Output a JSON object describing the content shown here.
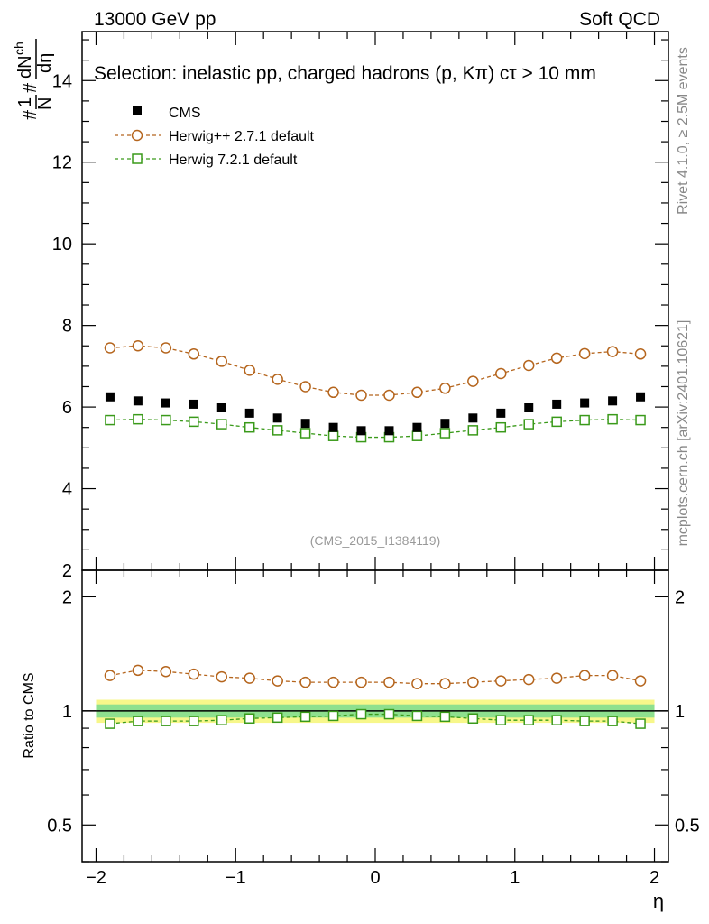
{
  "header": {
    "left": "13000 GeV pp",
    "right": "Soft QCD"
  },
  "side_labels": {
    "rivet": "Rivet 4.1.0, ≥ 2.5M events",
    "mcplots": "mcplots.cern.ch [arXiv:2401.10621]"
  },
  "colors": {
    "cms": "#000000",
    "herwig_pp": "#b5651d",
    "herwig7": "#3a9a1a",
    "band_outer": "#f7f78a",
    "band_inner": "#8ee08e"
  },
  "chart_data": {
    "type": "scatter",
    "title": "Selection: inelastic pp, charged hadrons (p, Kπ) cτ > 10 mm",
    "watermark": "(CMS_2015_I1384119)",
    "xlabel": "η",
    "ylabel": "#1/N# dN_ch/dη",
    "ylabel_parts": {
      "prefix": "#",
      "frac_num": "1",
      "frac_den": "N",
      "mid": "#",
      "dn": "dN",
      "ch": "ch",
      "deta": "dη"
    },
    "xlim": [
      -2.1,
      2.1
    ],
    "ylim": [
      2,
      15.2
    ],
    "x_ticks": [
      -2,
      -1,
      0,
      1,
      2
    ],
    "x_tick_labels": [
      "−2",
      "−1",
      "0",
      "1",
      "2"
    ],
    "y_ticks": [
      2,
      4,
      6,
      8,
      10,
      12,
      14
    ],
    "y_tick_labels": [
      "2",
      "4",
      "6",
      "8",
      "10",
      "12",
      "14"
    ],
    "x": [
      -1.9,
      -1.7,
      -1.5,
      -1.3,
      -1.1,
      -0.9,
      -0.7,
      -0.5,
      -0.3,
      -0.1,
      0.1,
      0.3,
      0.5,
      0.7,
      0.9,
      1.1,
      1.3,
      1.5,
      1.7,
      1.9
    ],
    "series": [
      {
        "name": "CMS",
        "marker": "filled-square",
        "values": [
          6.25,
          6.15,
          6.1,
          6.07,
          5.98,
          5.85,
          5.73,
          5.6,
          5.5,
          5.42,
          5.42,
          5.5,
          5.6,
          5.73,
          5.85,
          5.98,
          6.07,
          6.1,
          6.15,
          6.25
        ]
      },
      {
        "name": "Herwig++ 2.7.1 default",
        "marker": "open-circle",
        "values": [
          7.45,
          7.5,
          7.45,
          7.3,
          7.12,
          6.9,
          6.68,
          6.5,
          6.36,
          6.29,
          6.29,
          6.36,
          6.46,
          6.63,
          6.82,
          7.02,
          7.2,
          7.31,
          7.36,
          7.3
        ]
      },
      {
        "name": "Herwig 7.2.1 default",
        "marker": "open-square",
        "values": [
          5.68,
          5.7,
          5.68,
          5.64,
          5.58,
          5.5,
          5.43,
          5.36,
          5.29,
          5.26,
          5.26,
          5.29,
          5.36,
          5.43,
          5.5,
          5.58,
          5.64,
          5.68,
          5.7,
          5.68
        ]
      }
    ],
    "ratio": {
      "ylabel": "Ratio to CMS",
      "ylim": [
        0.4,
        2.35
      ],
      "y_ticks": [
        0.5,
        1,
        2
      ],
      "y_tick_labels": [
        "0.5",
        "1",
        "2"
      ],
      "band_outer": 0.07,
      "band_inner": 0.04,
      "series": [
        {
          "name": "Herwig++ 2.7.1 default",
          "values": [
            1.24,
            1.28,
            1.27,
            1.25,
            1.23,
            1.22,
            1.2,
            1.19,
            1.19,
            1.19,
            1.19,
            1.18,
            1.18,
            1.19,
            1.2,
            1.21,
            1.22,
            1.24,
            1.24,
            1.2
          ]
        },
        {
          "name": "Herwig 7.2.1 default",
          "values": [
            0.925,
            0.94,
            0.94,
            0.94,
            0.945,
            0.955,
            0.96,
            0.965,
            0.97,
            0.98,
            0.98,
            0.97,
            0.965,
            0.955,
            0.945,
            0.945,
            0.945,
            0.94,
            0.94,
            0.925
          ]
        }
      ]
    }
  }
}
